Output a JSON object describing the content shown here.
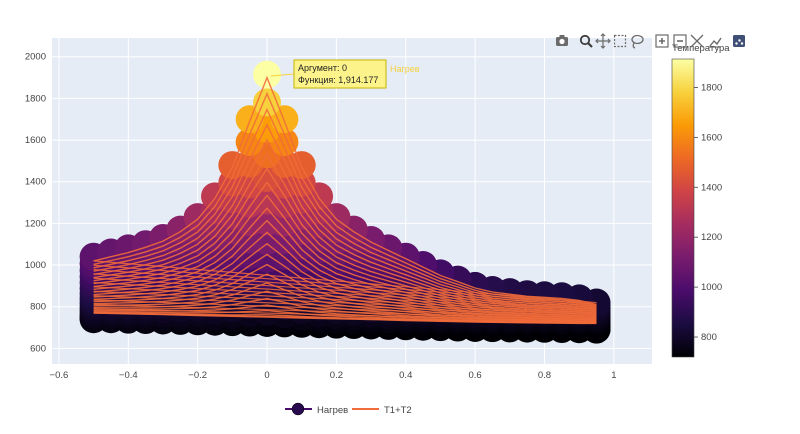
{
  "modebar": {
    "buttons": [
      {
        "name": "camera-icon"
      },
      {
        "name": "zoom-icon"
      },
      {
        "name": "pan-icon"
      },
      {
        "name": "box-select-icon"
      },
      {
        "name": "lasso-icon"
      },
      {
        "name": "zoom-in-icon"
      },
      {
        "name": "zoom-out-icon"
      },
      {
        "name": "autoscale-icon"
      },
      {
        "name": "reset-axes-icon"
      },
      {
        "name": "plotly-logo-icon"
      }
    ]
  },
  "colorbar": {
    "title": "Температура",
    "range": [
      720,
      1914
    ],
    "ticks": [
      800,
      1000,
      1200,
      1400,
      1600,
      1800
    ],
    "colorscale": [
      "#000004",
      "#1b0c41",
      "#4a0c6b",
      "#781c6d",
      "#a52c60",
      "#cf4446",
      "#ed6925",
      "#fb9b06",
      "#f7d13d",
      "#fcffa4"
    ]
  },
  "tooltip": {
    "line1": "Аргумент: 0",
    "line2": "Функция: 1,914.177",
    "trace": "Нагрев"
  },
  "chart_data": {
    "type": "scatter",
    "title": "",
    "xlabel": "",
    "ylabel": "",
    "xlim": [
      -0.62,
      1.11
    ],
    "ylim": [
      525,
      2090
    ],
    "xticks": [
      -0.6,
      -0.4,
      -0.2,
      0,
      0.2,
      0.4,
      0.6,
      0.8,
      1
    ],
    "xtick_labels": [
      "−0.6",
      "−0.4",
      "−0.2",
      "0",
      "0.2",
      "0.4",
      "0.6",
      "0.8",
      "1"
    ],
    "yticks": [
      600,
      800,
      1000,
      1200,
      1400,
      1600,
      1800,
      2000
    ],
    "ytick_labels": [
      "600",
      "800",
      "1000",
      "1200",
      "1400",
      "1600",
      "1800",
      "2000"
    ],
    "grid": true,
    "legend_position": "bottom-center",
    "x": [
      -0.5,
      -0.45,
      -0.4,
      -0.35,
      -0.3,
      -0.25,
      -0.2,
      -0.15,
      -0.1,
      -0.05,
      0,
      0.05,
      0.1,
      0.15,
      0.2,
      0.25,
      0.3,
      0.35,
      0.4,
      0.45,
      0.5,
      0.55,
      0.6,
      0.65,
      0.7,
      0.75,
      0.8,
      0.85,
      0.9,
      0.95
    ],
    "series": [
      {
        "name": "Нагрев",
        "mode": "markers",
        "marker_size": 28,
        "top_envelope": [
          1040,
          1060,
          1080,
          1100,
          1130,
          1170,
          1230,
          1330,
          1480,
          1700,
          1914,
          1700,
          1480,
          1330,
          1230,
          1170,
          1120,
          1080,
          1040,
          1000,
          960,
          930,
          900,
          880,
          870,
          860,
          855,
          850,
          840,
          820
        ],
        "bottom_envelope": [
          740,
          740,
          738,
          736,
          734,
          732,
          730,
          728,
          726,
          724,
          722,
          720,
          718,
          716,
          714,
          712,
          710,
          708,
          706,
          704,
          702,
          700,
          698,
          697,
          696,
          695,
          694,
          693,
          692,
          690
        ]
      },
      {
        "name": "T1+T2",
        "mode": "lines",
        "top_envelope": [
          1020,
          1040,
          1060,
          1085,
          1115,
          1160,
          1220,
          1320,
          1470,
          1690,
          1900,
          1690,
          1470,
          1320,
          1220,
          1160,
          1110,
          1070,
          1030,
          990,
          950,
          920,
          890,
          870,
          860,
          850,
          845,
          840,
          830,
          810
        ],
        "bottom_envelope": [
          770,
          768,
          766,
          764,
          762,
          760,
          758,
          756,
          754,
          752,
          750,
          748,
          746,
          744,
          742,
          740,
          738,
          736,
          734,
          732,
          730,
          728,
          726,
          725,
          724,
          723,
          722,
          721,
          720,
          720
        ]
      }
    ]
  }
}
